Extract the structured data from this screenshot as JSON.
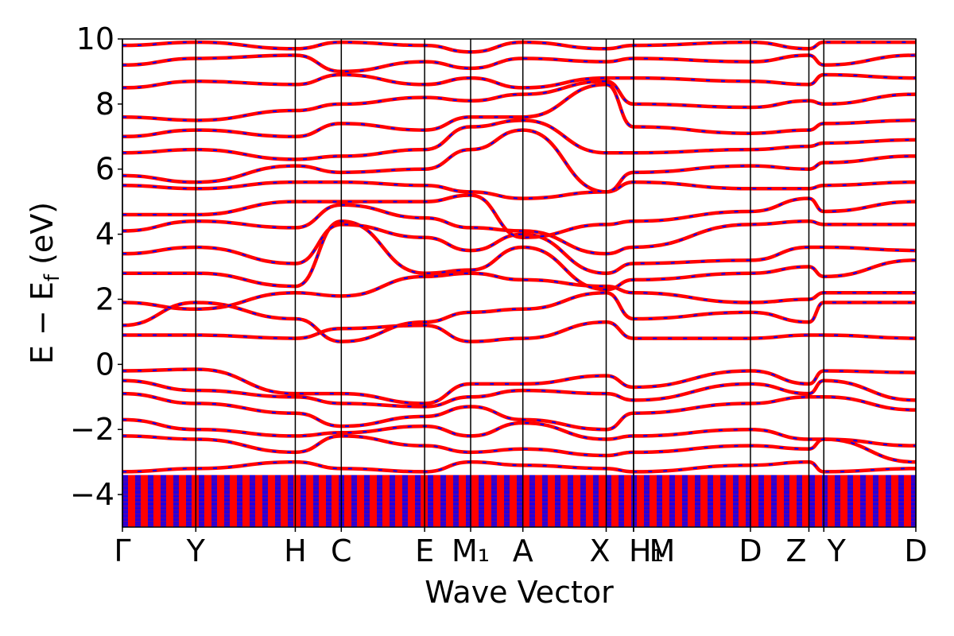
{
  "chart_data": {
    "type": "line",
    "title": "",
    "xlabel": "Wave Vector",
    "ylabel": "E − E_f (eV)",
    "ylabel_main": "E − E",
    "ylabel_sub": "f",
    "ylabel_unit": " (eV)",
    "ylim": [
      -5,
      10
    ],
    "yticks": [
      -4,
      -2,
      0,
      2,
      4,
      6,
      8,
      10
    ],
    "ytick_labels": [
      "−4",
      "−2",
      "0",
      "2",
      "4",
      "6",
      "8",
      "10"
    ],
    "grid": false,
    "xlim": [
      0,
      6.38
    ],
    "kpoints": [
      {
        "label": "Γ",
        "x": 0.0
      },
      {
        "label": "Y",
        "x": 0.59
      },
      {
        "label": "H",
        "x": 1.39
      },
      {
        "label": "C",
        "x": 1.76
      },
      {
        "label": "E",
        "x": 2.43
      },
      {
        "label": "M₁",
        "x": 2.8
      },
      {
        "label": "A",
        "x": 3.22
      },
      {
        "label": "X",
        "x": 3.89
      },
      {
        "label": "H₁",
        "x": 4.11
      },
      {
        "label": "M",
        "x": 4.11
      },
      {
        "label": "D",
        "x": 5.05
      },
      {
        "label": "Z",
        "x": 5.52
      },
      {
        "label": "Y",
        "x": 5.64
      },
      {
        "label": "D",
        "x": 6.38
      }
    ],
    "series_colors": {
      "line": "#ff0000",
      "dash": "#0000ff"
    },
    "series": [
      {
        "x": [
          0,
          0.59,
          1.39,
          1.76,
          2.43,
          2.8,
          3.22,
          3.89,
          4.11,
          5.05,
          5.52,
          5.64,
          6.38
        ],
        "values": [
          -0.2,
          -0.15,
          -0.9,
          -0.9,
          -1.2,
          -0.6,
          -0.6,
          -0.35,
          -0.7,
          -0.2,
          -0.6,
          -0.2,
          -0.25
        ]
      },
      {
        "x": [
          0,
          0.59,
          1.39,
          1.76,
          2.43,
          2.8,
          3.22,
          3.89,
          4.11,
          5.05,
          5.52,
          5.64,
          6.38
        ],
        "values": [
          -0.5,
          -0.8,
          -1.0,
          -1.2,
          -1.3,
          -1.0,
          -0.8,
          -0.9,
          -1.1,
          -0.6,
          -0.9,
          -0.5,
          -1.1
        ]
      },
      {
        "x": [
          0,
          0.59,
          1.39,
          1.76,
          2.43,
          2.8,
          3.22,
          3.89,
          4.11,
          5.05,
          5.52,
          5.64,
          6.38
        ],
        "values": [
          -0.9,
          -1.2,
          -1.5,
          -1.9,
          -1.6,
          -1.3,
          -1.7,
          -2.0,
          -1.5,
          -1.2,
          -1.0,
          -1.0,
          -1.4
        ]
      },
      {
        "x": [
          0,
          0.59,
          1.39,
          1.76,
          2.43,
          2.8,
          3.22,
          3.89,
          4.11,
          5.05,
          5.52,
          5.64,
          6.38
        ],
        "values": [
          -1.7,
          -2.0,
          -2.2,
          -2.1,
          -1.9,
          -2.2,
          -1.8,
          -2.3,
          -2.2,
          -2.0,
          -2.3,
          -2.3,
          -2.5
        ]
      },
      {
        "x": [
          0,
          0.59,
          1.39,
          1.76,
          2.43,
          2.8,
          3.22,
          3.89,
          4.11,
          5.05,
          5.52,
          5.64,
          6.38
        ],
        "values": [
          -2.2,
          -2.3,
          -2.7,
          -2.2,
          -2.5,
          -2.7,
          -2.6,
          -2.8,
          -2.7,
          -2.5,
          -2.6,
          -2.3,
          -3.0
        ]
      },
      {
        "x": [
          0,
          0.59,
          1.39,
          1.76,
          2.43,
          2.8,
          3.22,
          3.89,
          4.11,
          5.05,
          5.52,
          5.64,
          6.38
        ],
        "values": [
          -3.3,
          -3.2,
          -3.0,
          -3.2,
          -3.3,
          -3.0,
          -3.1,
          -3.2,
          -3.3,
          -3.1,
          -3.0,
          -3.3,
          -3.2
        ]
      },
      {
        "x": [
          0,
          0.59,
          1.39,
          1.76,
          2.43,
          2.8,
          3.22,
          3.89,
          4.11,
          5.05,
          5.52,
          5.64,
          6.38
        ],
        "values": [
          0.9,
          0.9,
          0.8,
          1.1,
          1.2,
          0.7,
          0.8,
          1.3,
          0.8,
          0.8,
          0.9,
          0.9,
          0.8
        ]
      },
      {
        "x": [
          0,
          0.59,
          1.39,
          1.76,
          2.43,
          2.8,
          3.22,
          3.89,
          4.11,
          5.05,
          5.52,
          5.64,
          6.38
        ],
        "values": [
          1.2,
          1.9,
          1.4,
          0.7,
          1.3,
          1.6,
          1.7,
          2.2,
          1.4,
          1.6,
          1.3,
          1.9,
          1.9
        ]
      },
      {
        "x": [
          0,
          0.59,
          1.39,
          1.76,
          2.43,
          2.8,
          3.22,
          3.89,
          4.11,
          5.05,
          5.52,
          5.64,
          6.38
        ],
        "values": [
          1.9,
          1.7,
          2.2,
          2.1,
          2.7,
          2.8,
          2.6,
          2.4,
          2.2,
          1.9,
          2.0,
          2.2,
          2.2
        ]
      },
      {
        "x": [
          0,
          0.59,
          1.39,
          1.76,
          2.43,
          2.8,
          3.22,
          3.89,
          4.11,
          5.05,
          5.52,
          5.64,
          6.38
        ],
        "values": [
          2.8,
          2.8,
          2.4,
          4.4,
          2.8,
          2.9,
          3.6,
          2.3,
          2.6,
          2.8,
          3.0,
          2.7,
          3.2
        ]
      },
      {
        "x": [
          0,
          0.59,
          1.39,
          1.76,
          2.43,
          2.8,
          3.22,
          3.89,
          4.11,
          5.05,
          5.52,
          5.64,
          6.38
        ],
        "values": [
          3.4,
          3.6,
          3.1,
          4.3,
          3.9,
          3.5,
          4.0,
          2.8,
          3.1,
          3.2,
          3.6,
          3.6,
          3.5
        ]
      },
      {
        "x": [
          0,
          0.59,
          1.39,
          1.76,
          2.43,
          2.8,
          3.22,
          3.89,
          4.11,
          5.05,
          5.52,
          5.64,
          6.38
        ],
        "values": [
          4.1,
          4.4,
          4.2,
          4.9,
          4.5,
          4.2,
          4.1,
          3.4,
          3.6,
          4.3,
          4.4,
          4.3,
          4.3
        ]
      },
      {
        "x": [
          0,
          0.59,
          1.39,
          1.76,
          2.43,
          2.8,
          3.22,
          3.89,
          4.11,
          5.05,
          5.52,
          5.64,
          6.38
        ],
        "values": [
          4.6,
          4.6,
          5.0,
          5.0,
          5.0,
          5.2,
          3.9,
          4.3,
          4.4,
          4.7,
          5.1,
          4.7,
          5.0
        ]
      },
      {
        "x": [
          0,
          0.59,
          1.39,
          1.76,
          2.43,
          2.8,
          3.22,
          3.89,
          4.11,
          5.05,
          5.52,
          5.64,
          6.38
        ],
        "values": [
          5.5,
          5.4,
          5.6,
          5.6,
          5.5,
          5.3,
          5.1,
          5.3,
          5.6,
          5.4,
          5.4,
          5.5,
          5.6
        ]
      },
      {
        "x": [
          0,
          0.59,
          1.39,
          1.76,
          2.43,
          2.8,
          3.22,
          3.89,
          4.11,
          5.05,
          5.52,
          5.64,
          6.38
        ],
        "values": [
          5.8,
          5.6,
          6.1,
          5.9,
          6.0,
          6.6,
          7.2,
          5.3,
          5.9,
          6.1,
          6.0,
          6.2,
          6.4
        ]
      },
      {
        "x": [
          0,
          0.59,
          1.39,
          1.76,
          2.43,
          2.8,
          3.22,
          3.89,
          4.11,
          5.05,
          5.52,
          5.64,
          6.38
        ],
        "values": [
          6.5,
          6.6,
          6.3,
          6.4,
          6.6,
          7.3,
          7.5,
          6.5,
          6.5,
          6.6,
          6.7,
          6.8,
          6.9
        ]
      },
      {
        "x": [
          0,
          0.59,
          1.39,
          1.76,
          2.43,
          2.8,
          3.22,
          3.89,
          4.11,
          5.05,
          5.52,
          5.64,
          6.38
        ],
        "values": [
          7.0,
          7.2,
          7.0,
          7.4,
          7.2,
          7.6,
          7.6,
          8.6,
          7.3,
          7.1,
          7.2,
          7.4,
          7.5
        ]
      },
      {
        "x": [
          0,
          0.59,
          1.39,
          1.76,
          2.43,
          2.8,
          3.22,
          3.89,
          4.11,
          5.05,
          5.52,
          5.64,
          6.38
        ],
        "values": [
          7.6,
          7.5,
          7.8,
          8.0,
          8.2,
          8.1,
          8.3,
          8.7,
          8.0,
          7.9,
          8.1,
          8.0,
          8.3
        ]
      },
      {
        "x": [
          0,
          0.59,
          1.39,
          1.76,
          2.43,
          2.8,
          3.22,
          3.89,
          4.11,
          5.05,
          5.52,
          5.64,
          6.38
        ],
        "values": [
          8.5,
          8.7,
          8.6,
          8.9,
          8.6,
          8.8,
          8.5,
          8.8,
          8.8,
          8.7,
          8.6,
          8.9,
          8.8
        ]
      },
      {
        "x": [
          0,
          0.59,
          1.39,
          1.76,
          2.43,
          2.8,
          3.22,
          3.89,
          4.11,
          5.05,
          5.52,
          5.64,
          6.38
        ],
        "values": [
          9.2,
          9.4,
          9.5,
          9.0,
          9.3,
          9.1,
          9.4,
          9.3,
          9.4,
          9.3,
          9.5,
          9.2,
          9.5
        ]
      },
      {
        "x": [
          0,
          0.59,
          1.39,
          1.76,
          2.43,
          2.8,
          3.22,
          3.89,
          4.11,
          5.05,
          5.52,
          5.64,
          6.38
        ],
        "values": [
          9.8,
          9.9,
          9.7,
          9.9,
          9.8,
          9.6,
          9.9,
          9.7,
          9.8,
          9.9,
          9.7,
          9.9,
          9.9
        ]
      }
    ],
    "dense_region": {
      "ymin": -5,
      "ymax": -3.4
    }
  }
}
